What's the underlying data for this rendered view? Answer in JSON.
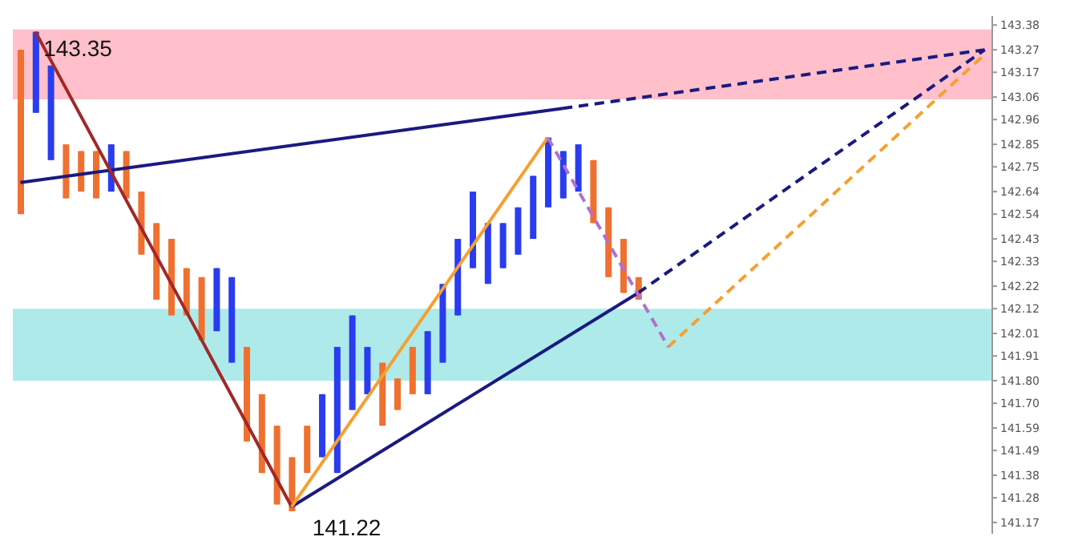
{
  "chart_data": {
    "type": "candlestick",
    "tick_labels": "y",
    "ylim": [
      141.12,
      143.42
    ],
    "yticks": [
      143.38,
      143.27,
      143.17,
      143.06,
      142.96,
      142.85,
      142.75,
      142.64,
      142.54,
      142.43,
      142.33,
      142.22,
      142.12,
      142.01,
      141.91,
      {
        "value": 141.8,
        "label": "141.80"
      },
      {
        "value": 141.7,
        "label": "141.70"
      },
      141.59,
      141.49,
      141.38,
      141.28,
      141.17
    ],
    "grid": false,
    "legend": false,
    "categories": [
      null,
      null,
      null,
      null,
      null,
      null,
      null,
      null,
      null,
      null,
      null,
      null,
      null,
      null,
      null,
      null,
      null,
      null,
      null,
      null,
      null,
      null,
      null,
      null,
      null,
      null,
      null,
      null,
      null,
      null,
      null,
      null,
      null,
      null,
      null,
      null,
      null,
      null,
      null,
      null,
      null,
      null,
      null,
      null,
      null,
      null,
      null,
      null,
      null,
      null,
      null,
      null,
      null,
      null,
      null,
      null,
      null,
      null,
      null,
      null,
      null,
      null,
      null,
      null,
      null
    ],
    "ohlc": [
      [
        143.27,
        143.27,
        142.54,
        142.54
      ],
      [
        142.99,
        143.35,
        142.99,
        143.35
      ],
      [
        142.78,
        143.2,
        142.78,
        143.2
      ],
      [
        142.85,
        142.85,
        142.61,
        142.61
      ],
      [
        142.82,
        142.82,
        142.64,
        142.64
      ],
      [
        142.82,
        142.82,
        142.61,
        142.61
      ],
      [
        142.64,
        142.85,
        142.64,
        142.85
      ],
      [
        142.82,
        142.82,
        142.61,
        142.61
      ],
      [
        142.64,
        142.64,
        142.36,
        142.36
      ],
      [
        142.5,
        142.5,
        142.16,
        142.16
      ],
      [
        142.43,
        142.43,
        142.09,
        142.09
      ],
      [
        142.3,
        142.3,
        142.09,
        142.09
      ],
      [
        142.26,
        142.26,
        141.98,
        141.98
      ],
      [
        142.02,
        142.3,
        142.02,
        142.3
      ],
      [
        141.88,
        142.26,
        141.88,
        142.26
      ],
      [
        141.95,
        141.95,
        141.53,
        141.53
      ],
      [
        141.74,
        141.74,
        141.39,
        141.39
      ],
      [
        141.6,
        141.6,
        141.25,
        141.25
      ],
      [
        141.46,
        141.46,
        141.22,
        141.22
      ],
      [
        141.6,
        141.6,
        141.39,
        141.39
      ],
      [
        141.46,
        141.74,
        141.46,
        141.74
      ],
      [
        141.39,
        141.95,
        141.39,
        141.95
      ],
      [
        141.67,
        142.09,
        141.67,
        142.09
      ],
      [
        141.74,
        141.95,
        141.74,
        141.95
      ],
      [
        141.88,
        141.88,
        141.6,
        141.6
      ],
      [
        141.81,
        141.81,
        141.67,
        141.67
      ],
      [
        141.95,
        141.95,
        141.74,
        141.74
      ],
      [
        141.74,
        142.02,
        141.74,
        142.02
      ],
      [
        141.88,
        142.23,
        141.88,
        142.23
      ],
      [
        142.09,
        142.43,
        142.09,
        142.43
      ],
      [
        142.3,
        142.64,
        142.3,
        142.64
      ],
      [
        142.23,
        142.5,
        142.23,
        142.5
      ],
      [
        142.3,
        142.5,
        142.3,
        142.5
      ],
      [
        142.36,
        142.57,
        142.36,
        142.57
      ],
      [
        142.43,
        142.71,
        142.43,
        142.71
      ],
      [
        142.57,
        142.88,
        142.57,
        142.88
      ],
      [
        142.61,
        142.82,
        142.61,
        142.82
      ],
      [
        142.64,
        142.85,
        142.64,
        142.85
      ],
      [
        142.78,
        142.78,
        142.5,
        142.5
      ],
      [
        142.57,
        142.57,
        142.26,
        142.26
      ],
      [
        142.43,
        142.43,
        142.19,
        142.19
      ],
      [
        142.26,
        142.26,
        142.16,
        142.16
      ],
      null,
      null,
      null,
      null,
      null,
      null,
      null,
      null,
      null,
      null,
      null,
      null,
      null,
      null,
      null,
      null,
      null,
      null,
      null,
      null,
      null,
      null,
      null
    ],
    "colors": [
      "#f07030",
      "#2a3cf0",
      "#2a3cf0",
      "#f07030",
      "#f07030",
      "#f07030",
      "#2a3cf0",
      "#f07030",
      "#f07030",
      "#f07030",
      "#f07030",
      "#f07030",
      "#f07030",
      "#2a3cf0",
      "#2a3cf0",
      "#f07030",
      "#f07030",
      "#f07030",
      "#f07030",
      "#f07030",
      "#2a3cf0",
      "#2a3cf0",
      "#2a3cf0",
      "#2a3cf0",
      "#f07030",
      "#f07030",
      "#f07030",
      "#2a3cf0",
      "#2a3cf0",
      "#2a3cf0",
      "#2a3cf0",
      "#2a3cf0",
      "#2a3cf0",
      "#2a3cf0",
      "#2a3cf0",
      "#2a3cf0",
      "#2a3cf0",
      "#2a3cf0",
      "#f07030",
      "#f07030",
      "#f07030",
      "#f07030",
      null,
      null,
      null,
      null,
      null,
      null,
      null,
      null,
      null,
      null,
      null,
      null,
      null,
      null,
      null,
      null,
      null,
      null,
      null,
      null,
      null,
      null,
      null
    ],
    "series": [
      {
        "type": "line",
        "color": "#1a1a80",
        "line_style": "solid",
        "values": [
          142.68,
          null,
          null,
          null,
          null,
          null,
          null,
          null,
          null,
          null,
          null,
          null,
          null,
          null,
          null,
          null,
          null,
          null,
          null,
          null,
          null,
          null,
          null,
          null,
          null,
          null,
          null,
          null,
          null,
          null,
          null,
          null,
          null,
          null,
          null,
          null,
          143.01,
          null,
          null,
          null,
          null,
          null,
          null,
          null,
          null,
          null,
          null,
          null,
          null,
          null,
          null,
          null,
          null,
          null,
          null,
          null,
          null,
          null,
          null,
          null,
          null,
          null,
          null,
          null,
          null
        ]
      },
      {
        "type": "line",
        "color": "#1a1a80",
        "line_style": "dashed",
        "values": [
          null,
          null,
          null,
          null,
          null,
          null,
          null,
          null,
          null,
          null,
          null,
          null,
          null,
          null,
          null,
          null,
          null,
          null,
          null,
          null,
          null,
          null,
          null,
          null,
          null,
          null,
          null,
          null,
          null,
          null,
          null,
          null,
          null,
          null,
          null,
          null,
          143.01,
          null,
          null,
          null,
          null,
          null,
          null,
          null,
          null,
          null,
          null,
          null,
          null,
          null,
          null,
          null,
          null,
          null,
          null,
          null,
          null,
          null,
          null,
          null,
          null,
          null,
          null,
          null,
          143.27
        ]
      },
      {
        "type": "line",
        "color": "#a02828",
        "line_style": "solid",
        "values": [
          null,
          143.35,
          null,
          null,
          null,
          null,
          null,
          null,
          null,
          null,
          null,
          null,
          null,
          null,
          null,
          null,
          null,
          null,
          141.24,
          null,
          null,
          null,
          null,
          null,
          null,
          null,
          null,
          null,
          null,
          null,
          null,
          null,
          null,
          null,
          null,
          null,
          null,
          null,
          null,
          null,
          null,
          null,
          null,
          null,
          null,
          null,
          null,
          null,
          null,
          null,
          null,
          null,
          null,
          null,
          null,
          null,
          null,
          null,
          null,
          null,
          null,
          null,
          null,
          null,
          null
        ]
      },
      {
        "type": "line",
        "color": "#1a1a80",
        "line_style": "solid",
        "values": [
          null,
          null,
          null,
          null,
          null,
          null,
          null,
          null,
          null,
          null,
          null,
          null,
          null,
          null,
          null,
          null,
          null,
          null,
          141.24,
          null,
          null,
          null,
          null,
          null,
          null,
          null,
          null,
          null,
          null,
          null,
          null,
          null,
          null,
          null,
          null,
          null,
          null,
          null,
          null,
          null,
          null,
          142.19,
          null,
          null,
          null,
          null,
          null,
          null,
          null,
          null,
          null,
          null,
          null,
          null,
          null,
          null,
          null,
          null,
          null,
          null,
          null,
          null,
          null,
          null,
          null
        ]
      },
      {
        "type": "line",
        "color": "#1a1a80",
        "line_style": "dashed",
        "values": [
          null,
          null,
          null,
          null,
          null,
          null,
          null,
          null,
          null,
          null,
          null,
          null,
          null,
          null,
          null,
          null,
          null,
          null,
          null,
          null,
          null,
          null,
          null,
          null,
          null,
          null,
          null,
          null,
          null,
          null,
          null,
          null,
          null,
          null,
          null,
          null,
          null,
          null,
          null,
          null,
          null,
          142.19,
          null,
          null,
          null,
          null,
          null,
          null,
          null,
          null,
          null,
          null,
          null,
          null,
          null,
          null,
          null,
          null,
          null,
          null,
          null,
          null,
          null,
          null,
          143.27
        ]
      },
      {
        "type": "line",
        "color": "#f5a030",
        "line_style": "solid",
        "values": [
          null,
          null,
          null,
          null,
          null,
          null,
          null,
          null,
          null,
          null,
          null,
          null,
          null,
          null,
          null,
          null,
          null,
          null,
          141.24,
          null,
          null,
          null,
          null,
          null,
          null,
          null,
          null,
          null,
          null,
          null,
          null,
          null,
          null,
          null,
          null,
          142.88,
          null,
          null,
          null,
          null,
          null,
          null,
          null,
          null,
          null,
          null,
          null,
          null,
          null,
          null,
          null,
          null,
          null,
          null,
          null,
          null,
          null,
          null,
          null,
          null,
          null,
          null,
          null,
          null,
          null
        ]
      },
      {
        "type": "line",
        "color": "#f5a030",
        "line_style": "dashed",
        "values": [
          null,
          null,
          null,
          null,
          null,
          null,
          null,
          null,
          null,
          null,
          null,
          null,
          null,
          null,
          null,
          null,
          null,
          null,
          null,
          null,
          null,
          null,
          null,
          null,
          null,
          null,
          null,
          null,
          null,
          null,
          null,
          null,
          null,
          null,
          null,
          null,
          null,
          null,
          null,
          null,
          null,
          null,
          null,
          141.95,
          null,
          null,
          null,
          null,
          null,
          null,
          null,
          null,
          null,
          null,
          null,
          null,
          null,
          null,
          null,
          null,
          null,
          null,
          null,
          null,
          143.25
        ]
      },
      {
        "type": "line",
        "color": "#b070d0",
        "line_style": "dashed",
        "values": [
          null,
          null,
          null,
          null,
          null,
          null,
          null,
          null,
          null,
          null,
          null,
          null,
          null,
          null,
          null,
          null,
          null,
          null,
          null,
          null,
          null,
          null,
          null,
          null,
          null,
          null,
          null,
          null,
          null,
          null,
          null,
          null,
          null,
          null,
          null,
          142.88,
          null,
          null,
          null,
          null,
          null,
          null,
          null,
          141.95,
          null,
          null,
          null,
          null,
          null,
          null,
          null,
          null,
          null,
          null,
          null,
          null,
          null,
          null,
          null,
          null,
          null,
          null,
          null,
          null,
          null
        ]
      }
    ],
    "bands": [
      {
        "axis": "y",
        "from": 143.05,
        "to": 143.36,
        "color": "#ffc0cb"
      },
      {
        "axis": "y",
        "from": 141.8,
        "to": 142.12,
        "color": "#aeeaea"
      }
    ],
    "annotations": [
      "143.35",
      "141.22"
    ]
  }
}
